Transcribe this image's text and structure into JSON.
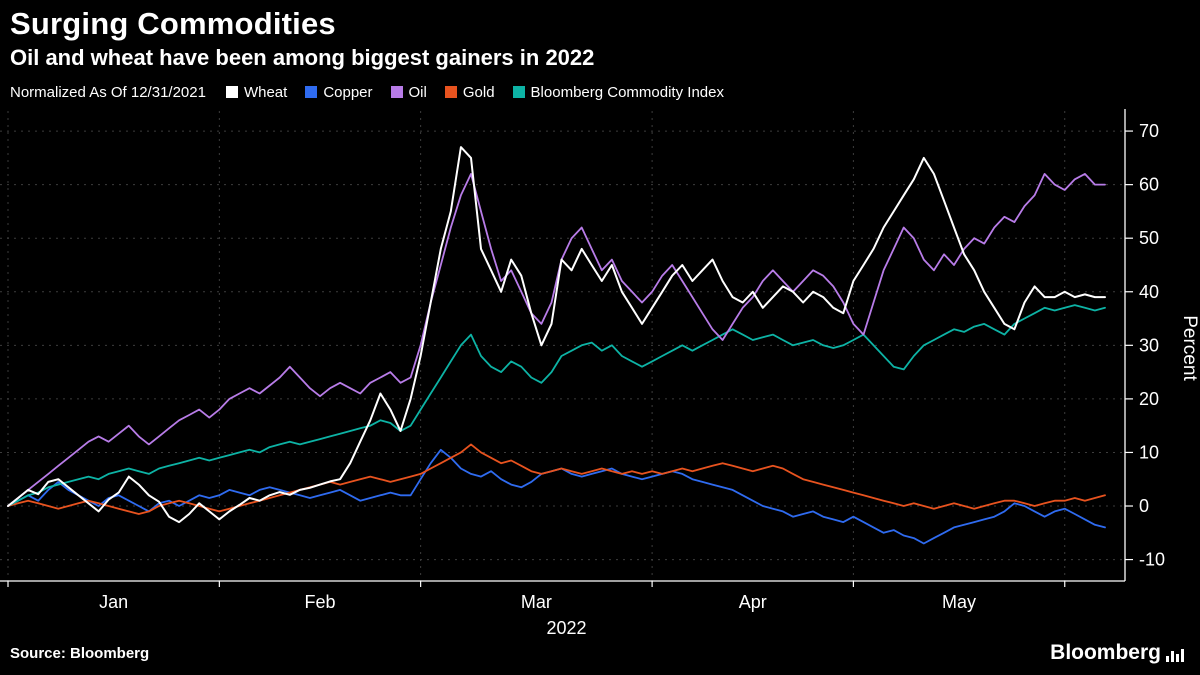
{
  "chart_data": {
    "type": "line",
    "title": "Surging Commodities",
    "subtitle": "Oil and wheat have been among biggest gainers in 2022",
    "legend_note": "Normalized As Of 12/31/2021",
    "legend_position": "top",
    "ylabel": "Percent",
    "ylim": [
      -14,
      73
    ],
    "yticks": [
      70,
      60,
      50,
      40,
      30,
      20,
      10,
      0,
      -10
    ],
    "x_tick_labels": [
      "Jan",
      "Feb",
      "Mar",
      "Apr",
      "May"
    ],
    "x_axis_year": "2022",
    "month_tick_indices": [
      0,
      21,
      41,
      64,
      84,
      105
    ],
    "n_points": 110,
    "grid": "dotted",
    "series": [
      {
        "name": "Wheat",
        "color": "#ffffff",
        "z": 5,
        "values": [
          0,
          1.5,
          3,
          2.2,
          4.5,
          5,
          3.5,
          2,
          0.5,
          -1,
          1.2,
          2.5,
          5.5,
          4,
          2,
          0.8,
          -2,
          -3,
          -1.5,
          0.5,
          -1,
          -2.5,
          -1,
          0.2,
          1.5,
          1,
          2,
          2.6,
          2.1,
          3,
          3.4,
          4,
          4.6,
          5,
          8,
          12,
          16,
          21,
          18,
          14,
          20,
          28,
          38,
          48,
          55,
          67,
          65,
          48,
          44,
          40,
          46,
          43,
          36,
          30,
          34,
          46,
          44,
          48,
          45,
          42,
          45,
          40,
          37,
          34,
          37,
          40,
          43,
          45,
          42,
          44,
          46,
          42,
          39,
          38,
          40,
          37,
          39,
          41,
          40,
          38,
          40,
          39,
          37,
          36,
          42,
          45,
          48,
          52,
          55,
          58,
          61,
          65,
          62,
          57,
          52,
          47,
          44,
          40,
          37,
          34,
          33,
          38,
          41,
          39,
          39,
          40,
          39,
          39.5,
          39,
          39
        ]
      },
      {
        "name": "Copper",
        "color": "#2f6bf0",
        "z": 1,
        "values": [
          0,
          1,
          2,
          1,
          3,
          4.5,
          3,
          2,
          1,
          0,
          1.5,
          2,
          1,
          0,
          -1,
          0.5,
          1,
          0,
          1,
          2,
          1.5,
          2,
          3,
          2.5,
          2,
          3,
          3.5,
          3,
          2.5,
          2,
          1.5,
          2,
          2.5,
          3,
          2,
          1,
          1.5,
          2,
          2.5,
          2,
          2,
          5,
          8,
          10.5,
          9,
          7,
          6,
          5.5,
          6.5,
          5,
          4,
          3.5,
          4.5,
          6,
          6.5,
          7,
          6,
          5.5,
          6,
          6.5,
          7,
          6,
          5.5,
          5,
          5.5,
          6,
          6.5,
          6,
          5,
          4.5,
          4,
          3.5,
          3,
          2,
          1,
          0,
          -0.5,
          -1,
          -2,
          -1.5,
          -1,
          -2,
          -2.5,
          -3,
          -2,
          -3,
          -4,
          -5,
          -4.5,
          -5.5,
          -6,
          -7,
          -6,
          -5,
          -4,
          -3.5,
          -3,
          -2.5,
          -2,
          -1,
          0.5,
          0,
          -1,
          -2,
          -1,
          -0.5,
          -1.5,
          -2.5,
          -3.5,
          -4
        ]
      },
      {
        "name": "Oil",
        "color": "#b87ce8",
        "z": 4,
        "values": [
          0,
          1.5,
          3,
          4.5,
          6,
          7.5,
          9,
          10.5,
          12,
          13,
          12,
          13.5,
          15,
          13,
          11.5,
          13,
          14.5,
          16,
          17,
          18,
          16.5,
          18,
          20,
          21,
          22,
          21,
          22.5,
          24,
          26,
          24,
          22,
          20.5,
          22,
          23,
          22,
          21,
          23,
          24,
          25,
          23,
          24,
          30,
          38,
          45,
          52,
          58,
          62,
          55,
          48,
          42,
          44,
          40,
          36,
          34,
          38,
          46,
          50,
          52,
          48,
          44,
          46,
          42,
          40,
          38,
          40,
          43,
          45,
          42,
          39,
          36,
          33,
          31,
          34,
          37,
          39,
          42,
          44,
          42,
          40,
          42,
          44,
          43,
          41,
          38,
          34,
          32,
          38,
          44,
          48,
          52,
          50,
          46,
          44,
          47,
          45,
          48,
          50,
          49,
          52,
          54,
          53,
          56,
          58,
          62,
          60,
          59,
          61,
          62,
          60,
          60
        ]
      },
      {
        "name": "Gold",
        "color": "#e8531f",
        "z": 2,
        "values": [
          0,
          0.5,
          1,
          0.5,
          0,
          -0.5,
          0,
          0.5,
          1,
          0.5,
          0,
          -0.5,
          -1,
          -1.5,
          -1,
          0,
          0.5,
          1,
          0.5,
          0,
          -0.5,
          -1,
          -0.5,
          0,
          0.5,
          1,
          1.5,
          2,
          2.5,
          3,
          3.5,
          4,
          4.5,
          4,
          4.5,
          5,
          5.5,
          5,
          4.5,
          5,
          5.5,
          6,
          7,
          8,
          9,
          10,
          11.5,
          10,
          9,
          8,
          8.5,
          7.5,
          6.5,
          6,
          6.5,
          7,
          6.5,
          6,
          6.5,
          7,
          6.5,
          6,
          6.5,
          6,
          6.5,
          6,
          6.5,
          7,
          6.5,
          7,
          7.5,
          8,
          7.5,
          7,
          6.5,
          7,
          7.5,
          7,
          6,
          5,
          4.5,
          4,
          3.5,
          3,
          2.5,
          2,
          1.5,
          1,
          0.5,
          0,
          0.5,
          0,
          -0.5,
          0,
          0.5,
          0,
          -0.5,
          0,
          0.5,
          1,
          1,
          0.5,
          0,
          0.5,
          1,
          1,
          1.5,
          1,
          1.5,
          2
        ]
      },
      {
        "name": "Bloomberg Commodity Index",
        "color": "#0db3a5",
        "z": 3,
        "values": [
          0,
          1,
          2,
          2.5,
          3.5,
          4,
          4.5,
          5,
          5.5,
          5,
          6,
          6.5,
          7,
          6.5,
          6,
          7,
          7.5,
          8,
          8.5,
          9,
          8.5,
          9,
          9.5,
          10,
          10.5,
          10,
          11,
          11.5,
          12,
          11.5,
          12,
          12.5,
          13,
          13.5,
          14,
          14.5,
          15,
          16,
          15.5,
          14,
          15,
          18,
          21,
          24,
          27,
          30,
          32,
          28,
          26,
          25,
          27,
          26,
          24,
          23,
          25,
          28,
          29,
          30,
          30.5,
          29,
          30,
          28,
          27,
          26,
          27,
          28,
          29,
          30,
          29,
          30,
          31,
          32,
          33,
          32,
          31,
          31.5,
          32,
          31,
          30,
          30.5,
          31,
          30,
          29.5,
          30,
          31,
          32,
          30,
          28,
          26,
          25.5,
          28,
          30,
          31,
          32,
          33,
          32.5,
          33.5,
          34,
          33,
          32,
          34,
          35,
          36,
          37,
          36.5,
          37,
          37.5,
          37,
          36.5,
          37
        ]
      }
    ]
  },
  "footer": {
    "source": "Source: Bloomberg",
    "brand": "Bloomberg"
  }
}
